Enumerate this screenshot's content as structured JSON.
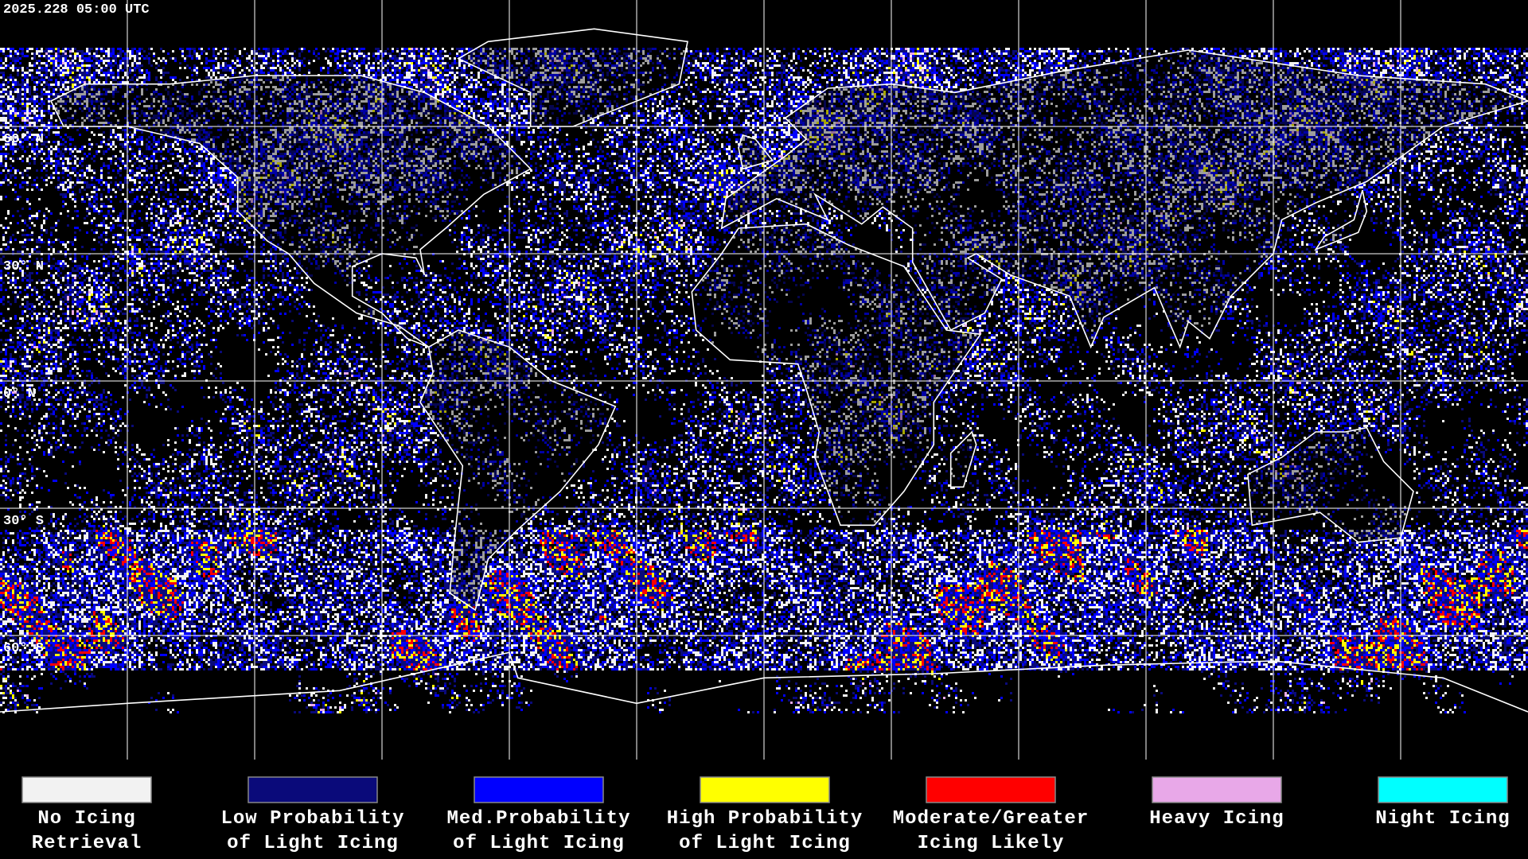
{
  "timestamp": "2025.228 05:00 UTC",
  "latitude_labels": [
    "60° N",
    "30° N",
    "0° N",
    "30° S",
    "60° S"
  ],
  "legend": [
    {
      "label": [
        "No Icing",
        "Retrieval"
      ],
      "color": "#f2f2f2"
    },
    {
      "label": [
        "Low Probability",
        "of Light Icing"
      ],
      "color": "#0a0a7a"
    },
    {
      "label": [
        "Med.Probability",
        "of Light Icing"
      ],
      "color": "#0000ff"
    },
    {
      "label": [
        "High Probability",
        "of Light Icing"
      ],
      "color": "#ffff00"
    },
    {
      "label": [
        "Moderate/Greater",
        "Icing Likely"
      ],
      "color": "#ff0000"
    },
    {
      "label": [
        "Heavy Icing"
      ],
      "color": "#e8a8e8"
    },
    {
      "label": [
        "Night Icing"
      ],
      "color": "#00ffff"
    }
  ]
}
